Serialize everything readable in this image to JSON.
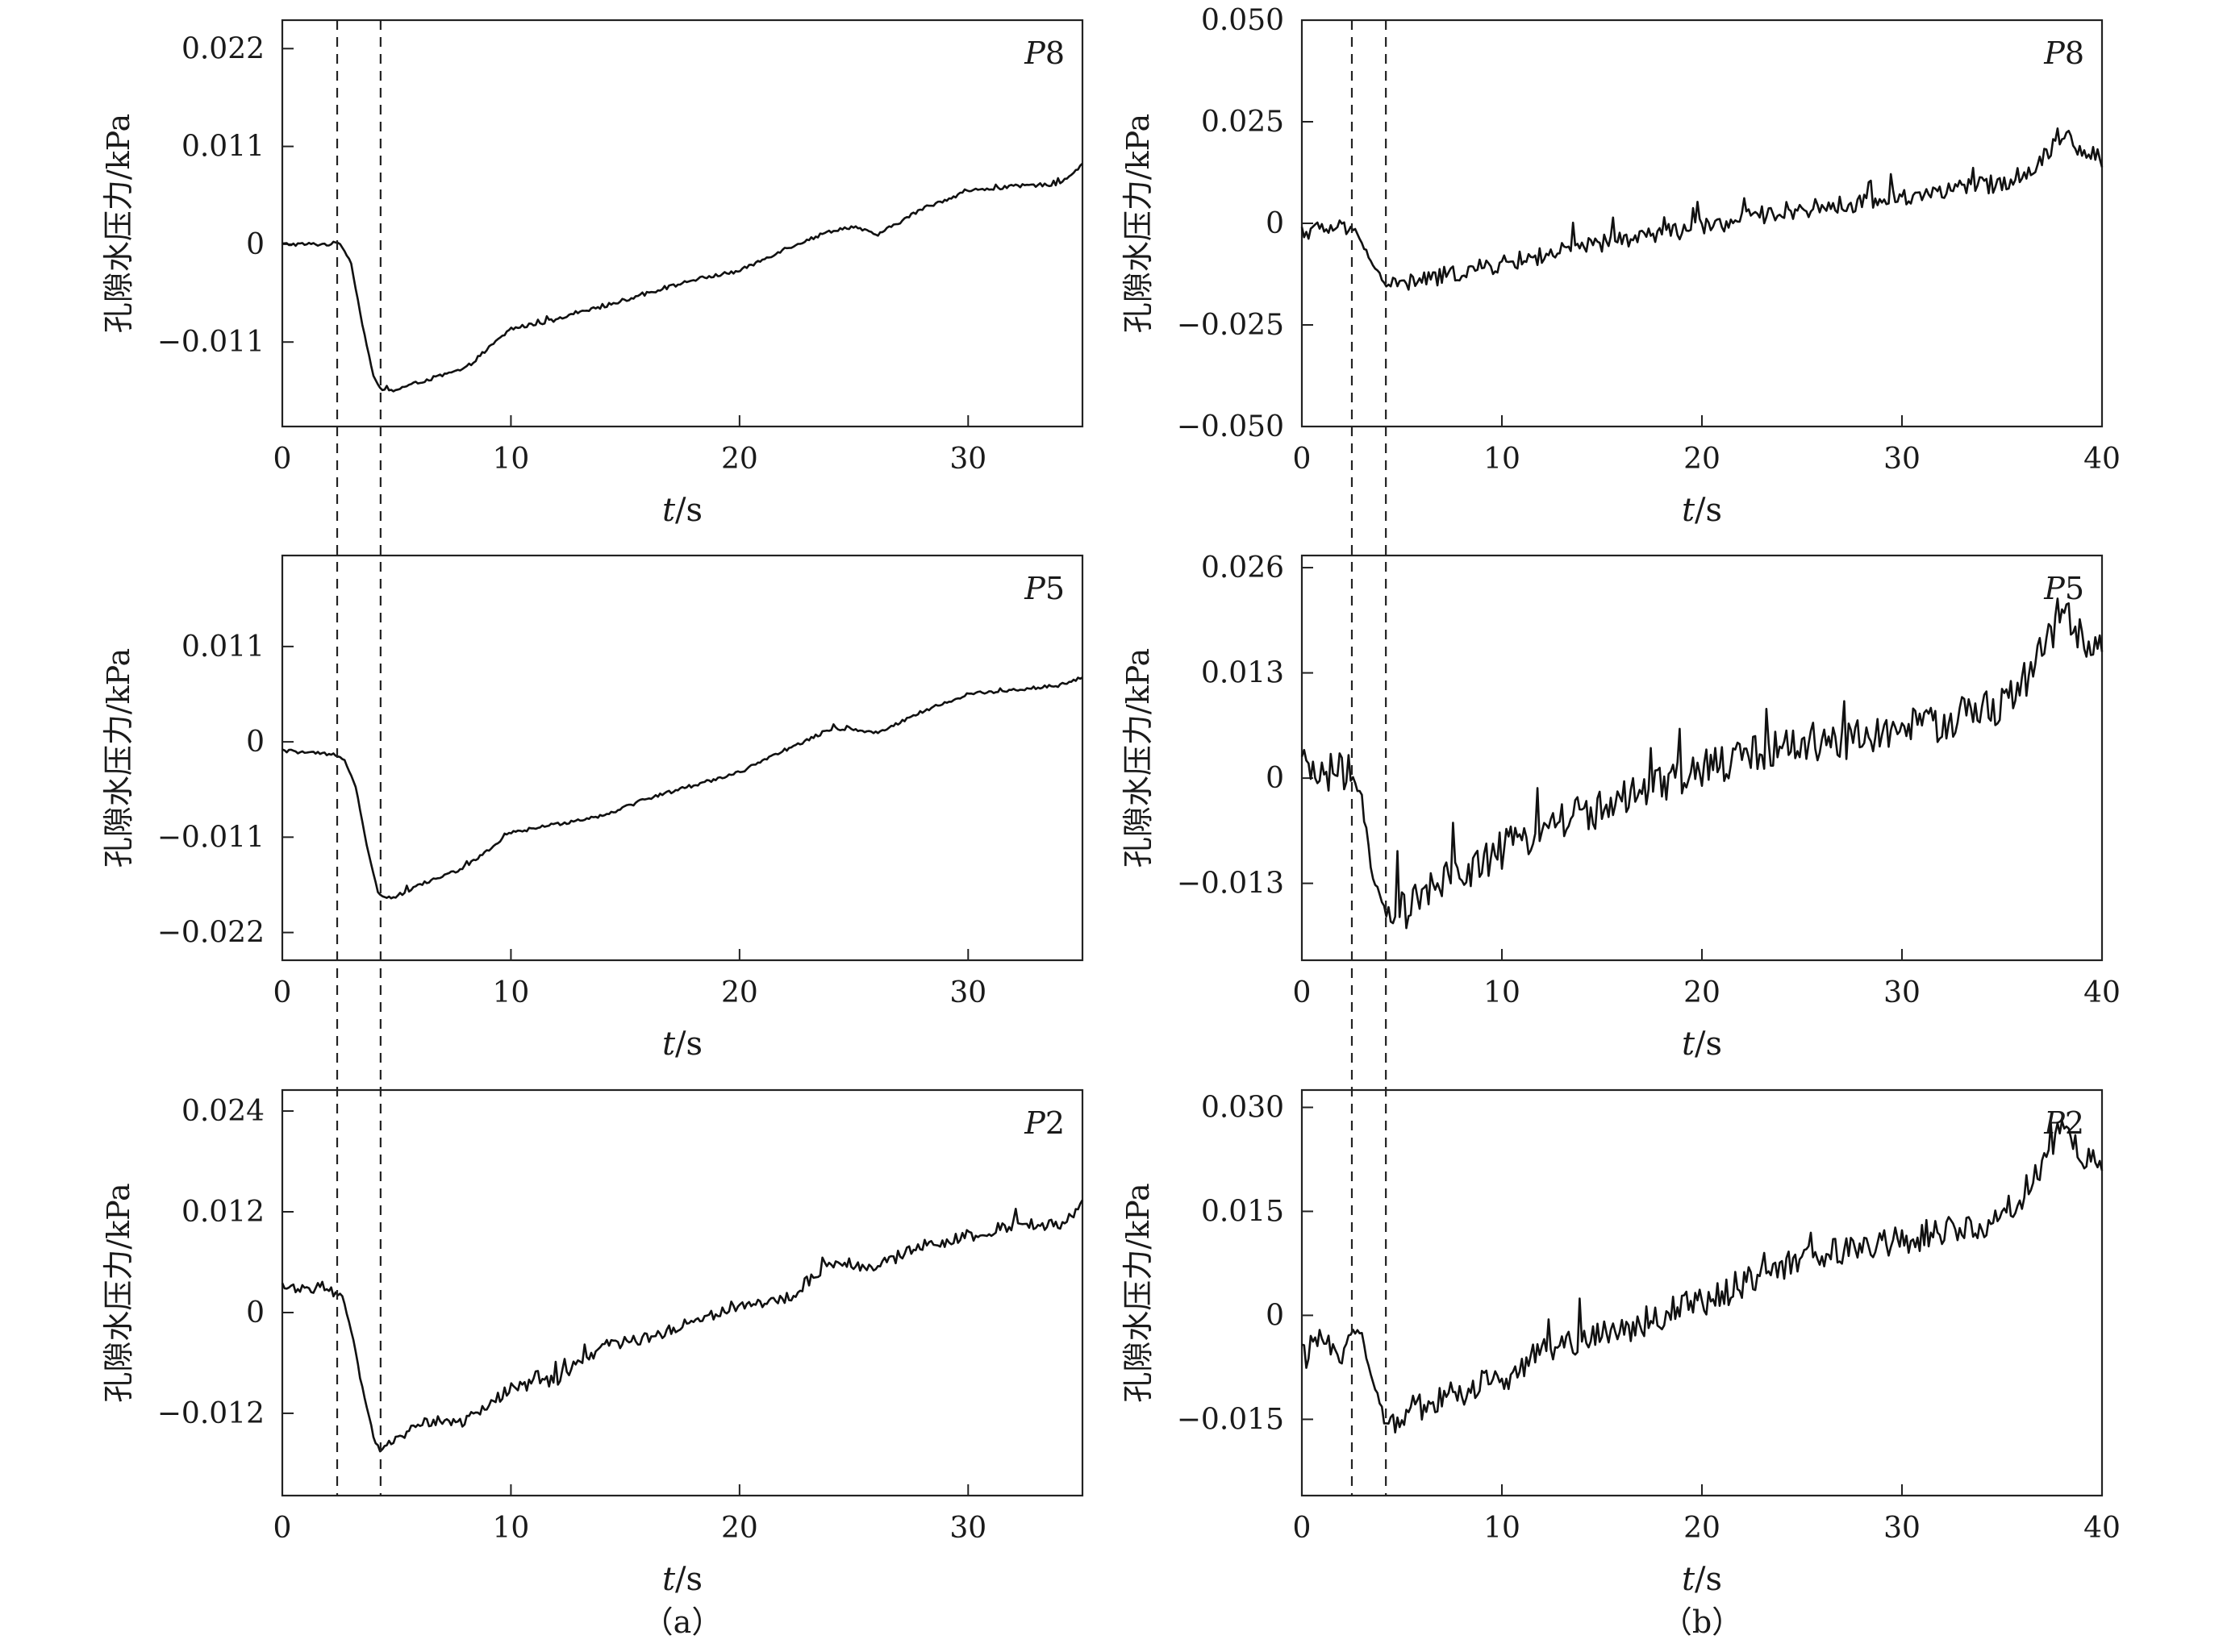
{
  "figure": {
    "group_labels": [
      "（a）",
      "（b）"
    ],
    "ylabel": "孔隙水压力/kPa",
    "xlabel_italic": "t",
    "xlabel_unit": "/s"
  },
  "chart_data": [
    {
      "type": "line",
      "group": "a",
      "sensor": "P8",
      "xlabel": "t/s",
      "ylabel": "孔隙水压力/kPa",
      "xlim": [
        0,
        35
      ],
      "ylim": [
        -0.0205,
        0.0252
      ],
      "xticks": [
        0,
        10,
        20,
        30
      ],
      "yticks": [
        -0.011,
        0,
        0.011,
        0.022
      ],
      "ytick_labels": [
        "−0.011",
        "0",
        "0.011",
        "0.022"
      ],
      "dashed_x": [
        2.4,
        4.3
      ],
      "noise": 0.0002,
      "series": [
        {
          "x": [
            0,
            2.0,
            2.5,
            3.0,
            3.5,
            4.0,
            4.3,
            4.8,
            6,
            8,
            10,
            12,
            14,
            16,
            18,
            20,
            22,
            24,
            25,
            26,
            28,
            30,
            32,
            34,
            35
          ],
          "y": [
            0.0,
            0.0,
            0.0002,
            -0.002,
            -0.009,
            -0.015,
            -0.0163,
            -0.0165,
            -0.0155,
            -0.014,
            -0.0095,
            -0.0085,
            -0.007,
            -0.0055,
            -0.004,
            -0.003,
            -0.0005,
            0.0015,
            0.002,
            0.001,
            0.004,
            0.006,
            0.0065,
            0.0068,
            0.009
          ]
        }
      ]
    },
    {
      "type": "line",
      "group": "b",
      "sensor": "P8",
      "xlabel": "t/s",
      "ylabel": "孔隙水压力/kPa",
      "xlim": [
        0,
        40
      ],
      "ylim": [
        -0.05,
        0.05
      ],
      "xticks": [
        0,
        10,
        20,
        30,
        40
      ],
      "yticks": [
        -0.05,
        -0.025,
        0,
        0.025,
        0.05
      ],
      "ytick_labels": [
        "−0.050",
        "−0.025",
        "0",
        "0.025",
        "0.050"
      ],
      "dashed_x": [
        2.5,
        4.2
      ],
      "noise": 0.0022,
      "series": [
        {
          "x": [
            0,
            2.0,
            2.8,
            3.5,
            4.2,
            5,
            7,
            10,
            13,
            16,
            20,
            24,
            28,
            32,
            35,
            36.5,
            38,
            39,
            40
          ],
          "y": [
            -0.002,
            -0.001,
            -0.002,
            -0.01,
            -0.015,
            -0.015,
            -0.013,
            -0.01,
            -0.007,
            -0.004,
            -0.001,
            0.003,
            0.005,
            0.008,
            0.01,
            0.013,
            0.022,
            0.018,
            0.016
          ]
        }
      ]
    },
    {
      "type": "line",
      "group": "a",
      "sensor": "P5",
      "xlabel": "t/s",
      "ylabel": "孔隙水压力/kPa",
      "xlim": [
        0,
        35
      ],
      "ylim": [
        -0.0252,
        0.0215
      ],
      "xticks": [
        0,
        10,
        20,
        30
      ],
      "yticks": [
        -0.022,
        -0.011,
        0,
        0.011
      ],
      "ytick_labels": [
        "−0.022",
        "−0.011",
        "0",
        "0.011"
      ],
      "dashed_x": [
        2.4,
        4.3
      ],
      "noise": 0.0002,
      "series": [
        {
          "x": [
            0,
            2.2,
            2.7,
            3.2,
            3.7,
            4.2,
            4.5,
            5.0,
            6,
            8,
            10,
            12,
            14,
            16,
            18,
            20,
            22,
            24,
            25,
            26,
            28,
            30,
            32,
            34,
            35
          ],
          "y": [
            -0.001,
            -0.0015,
            -0.002,
            -0.005,
            -0.012,
            -0.0175,
            -0.018,
            -0.0178,
            -0.0165,
            -0.0145,
            -0.0105,
            -0.0095,
            -0.0085,
            -0.0065,
            -0.005,
            -0.0035,
            -0.001,
            0.0015,
            0.0015,
            0.001,
            0.0035,
            0.0055,
            0.006,
            0.0065,
            0.0075
          ]
        }
      ]
    },
    {
      "type": "line",
      "group": "b",
      "sensor": "P5",
      "xlabel": "t/s",
      "ylabel": "孔隙水压力/kPa",
      "xlim": [
        0,
        40
      ],
      "ylim": [
        -0.0225,
        0.0275
      ],
      "xticks": [
        0,
        10,
        20,
        30,
        40
      ],
      "yticks": [
        -0.013,
        0,
        0.013,
        0.026
      ],
      "ytick_labels": [
        "−0.013",
        "0",
        "0.013",
        "0.026"
      ],
      "dashed_x": [
        2.5,
        4.2
      ],
      "noise": 0.0025,
      "series": [
        {
          "x": [
            0,
            2.5,
            3.0,
            3.5,
            4.2,
            5,
            7,
            10,
            13,
            16,
            20,
            24,
            28,
            32,
            35,
            36.5,
            38,
            39,
            40
          ],
          "y": [
            0.001,
            0.0005,
            -0.003,
            -0.012,
            -0.017,
            -0.0165,
            -0.013,
            -0.009,
            -0.005,
            -0.003,
            0.001,
            0.004,
            0.005,
            0.007,
            0.009,
            0.013,
            0.021,
            0.017,
            0.015
          ]
        }
      ]
    },
    {
      "type": "line",
      "group": "a",
      "sensor": "P2",
      "xlabel": "t/s",
      "ylabel": "孔隙水压力/kPa",
      "xlim": [
        0,
        35
      ],
      "ylim": [
        -0.0218,
        0.0265
      ],
      "xticks": [
        0,
        10,
        20,
        30
      ],
      "yticks": [
        -0.012,
        0,
        0.012,
        0.024
      ],
      "ytick_labels": [
        "−0.012",
        "0",
        "0.012",
        "0.024"
      ],
      "dashed_x": [
        2.4,
        4.3
      ],
      "noise": 0.0007,
      "series": [
        {
          "x": [
            0,
            2.0,
            2.6,
            3.0,
            3.5,
            4.0,
            4.3,
            4.8,
            6,
            8,
            10,
            12,
            14,
            16,
            18,
            20,
            22,
            24,
            26,
            28,
            30,
            32,
            34,
            35
          ],
          "y": [
            0.003,
            0.003,
            0.002,
            -0.002,
            -0.009,
            -0.015,
            -0.0165,
            -0.0155,
            -0.013,
            -0.013,
            -0.009,
            -0.008,
            -0.004,
            -0.003,
            -0.001,
            0.001,
            0.0015,
            0.006,
            0.0055,
            0.008,
            0.009,
            0.0105,
            0.0105,
            0.0128
          ]
        }
      ]
    },
    {
      "type": "line",
      "group": "b",
      "sensor": "P2",
      "xlabel": "t/s",
      "ylabel": "孔隙水压力/kPa",
      "xlim": [
        0,
        40
      ],
      "ylim": [
        -0.026,
        0.0325
      ],
      "xticks": [
        0,
        10,
        20,
        30,
        40
      ],
      "yticks": [
        -0.015,
        0,
        0.015,
        0.03
      ],
      "ytick_labels": [
        "−0.015",
        "0",
        "0.015",
        "0.030"
      ],
      "dashed_x": [
        2.5,
        4.2
      ],
      "noise": 0.0022,
      "series": [
        {
          "x": [
            0,
            1,
            2,
            2.5,
            3.0,
            3.5,
            4.2,
            5,
            7,
            10,
            13,
            16,
            20,
            24,
            28,
            32,
            35,
            36.5,
            38,
            39,
            40
          ],
          "y": [
            -0.006,
            -0.004,
            -0.005,
            -0.002,
            -0.003,
            -0.009,
            -0.016,
            -0.014,
            -0.012,
            -0.009,
            -0.004,
            -0.002,
            0.002,
            0.007,
            0.01,
            0.012,
            0.014,
            0.019,
            0.027,
            0.023,
            0.022
          ]
        }
      ]
    }
  ]
}
